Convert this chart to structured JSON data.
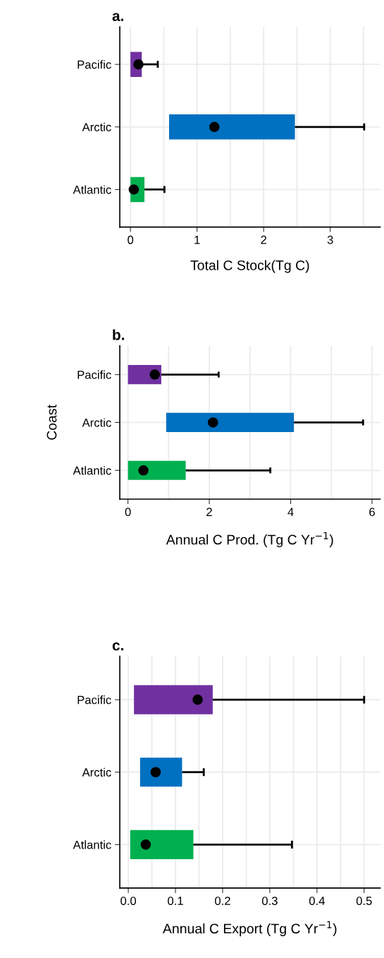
{
  "chart_data": [
    {
      "type": "bar",
      "orientation": "horizontal",
      "title": "a.",
      "xlabel": "Total C Stock(Tg C)",
      "categories": [
        "Pacific",
        "Arctic",
        "Atlantic"
      ],
      "series": [
        {
          "colors": [
            "#7030a0",
            "#0070c0",
            "#00b050"
          ],
          "base": [
            0,
            0.58,
            0
          ],
          "values": [
            0.17,
            1.89,
            0.21
          ],
          "errors": [
            [
              0.17,
              0.41
            ],
            [
              2.47,
              3.51
            ],
            [
              0.21,
              0.51
            ]
          ]
        },
        {
          "type": "scatter",
          "color": "#000000",
          "x": [
            "Pacific",
            "Arctic",
            "Atlantic"
          ],
          "values": [
            0.12,
            1.26,
            0.05
          ]
        }
      ],
      "xlim": [
        -0.16,
        3.75
      ],
      "xticks": [
        0,
        {
          "value": 0.5,
          "label": null
        },
        1,
        {
          "value": 1.5,
          "label": null
        },
        2,
        {
          "value": 2.5,
          "label": null
        },
        3,
        {
          "value": 3.5,
          "label": null
        }
      ],
      "grid": true,
      "marker": "circle",
      "legend": false
    },
    {
      "type": "bar",
      "orientation": "horizontal",
      "title": "b.",
      "xlabel": "Annual C Prod. (Tg C Yr$^{−1}$)",
      "ylabel": "Coast",
      "categories": [
        "Pacific",
        "Arctic",
        "Atlantic"
      ],
      "series": [
        {
          "colors": [
            "#7030a0",
            "#0070c0",
            "#00b050"
          ],
          "base": [
            0,
            0.94,
            0
          ],
          "values": [
            0.82,
            3.14,
            1.42
          ],
          "errors": [
            [
              0.82,
              2.23
            ],
            [
              4.08,
              5.78
            ],
            [
              1.42,
              3.5
            ]
          ]
        },
        {
          "type": "scatter",
          "color": "#000000",
          "x": [
            "Pacific",
            "Arctic",
            "Atlantic"
          ],
          "values": [
            0.66,
            2.09,
            0.38
          ]
        }
      ],
      "xlim": [
        -0.2,
        6.2
      ],
      "xticks": [
        0,
        {
          "value": 1,
          "label": null
        },
        2,
        {
          "value": 3,
          "label": null
        },
        4,
        {
          "value": 5,
          "label": null
        },
        6
      ],
      "grid": true,
      "marker": "circle",
      "legend": false
    },
    {
      "type": "bar",
      "orientation": "horizontal",
      "title": "c.",
      "xlabel": "Annual C Export (Tg C Yr$^{−1}$)",
      "categories": [
        "Pacific",
        "Arctic",
        "Atlantic"
      ],
      "series": [
        {
          "colors": [
            "#7030a0",
            "#0070c0",
            "#00b050"
          ],
          "base": [
            0.012,
            0.025,
            0.004
          ],
          "values": [
            0.167,
            0.089,
            0.134
          ],
          "errors": [
            [
              0.179,
              0.5
            ],
            [
              0.114,
              0.16
            ],
            [
              0.138,
              0.347
            ]
          ]
        },
        {
          "type": "scatter",
          "color": "#000000",
          "x": [
            "Pacific",
            "Arctic",
            "Atlantic"
          ],
          "values": [
            0.147,
            0.058,
            0.037
          ]
        }
      ],
      "xlim": [
        -0.018,
        0.534
      ],
      "xticks": [
        {
          "value": 0,
          "label": "0.0"
        },
        {
          "value": 0.05,
          "label": null
        },
        0.1,
        {
          "value": 0.15,
          "label": null
        },
        0.2,
        {
          "value": 0.25,
          "label": null
        },
        0.3,
        {
          "value": 0.35,
          "label": null
        },
        0.4,
        {
          "value": 0.45,
          "label": null
        },
        0.5
      ],
      "grid": true,
      "marker": "circle",
      "legend": false
    }
  ]
}
